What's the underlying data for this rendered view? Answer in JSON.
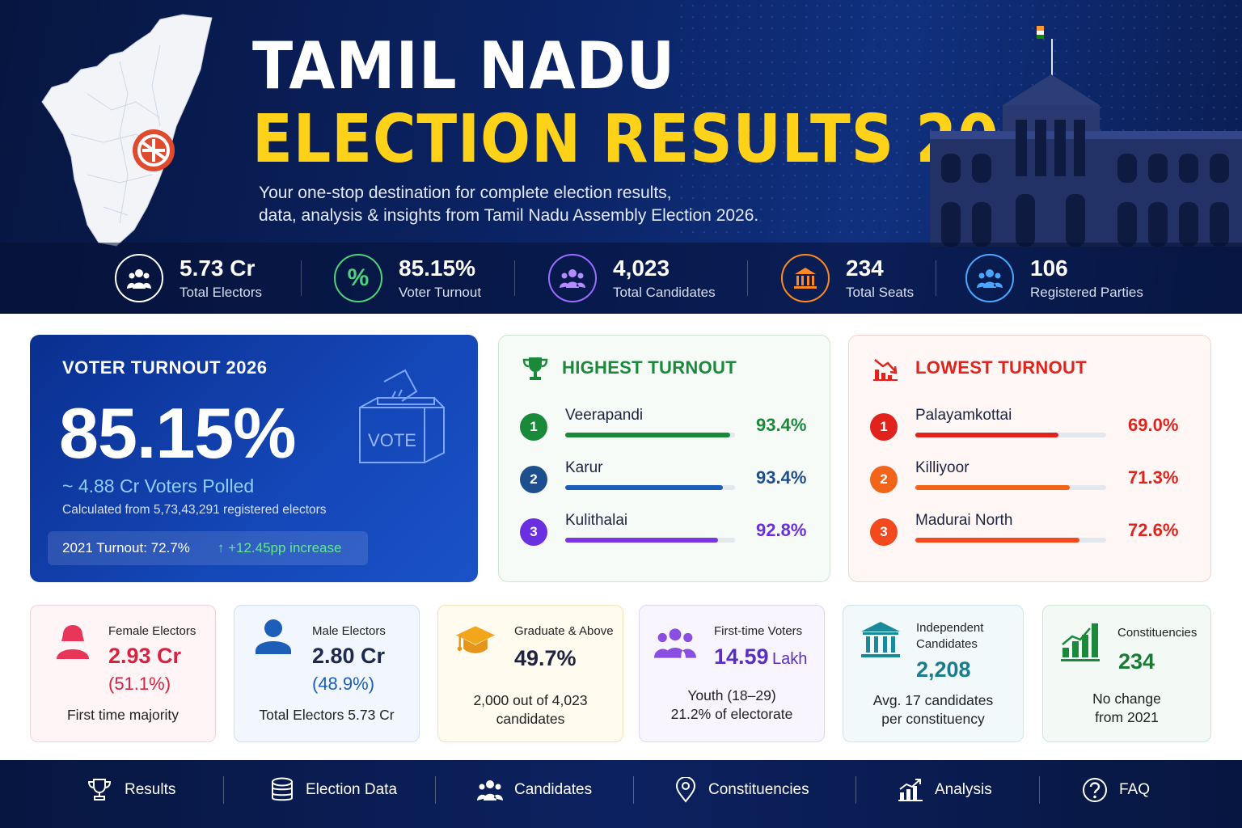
{
  "hero": {
    "title_line1": "TAMIL NADU",
    "title_line2": "ELECTION RESULTS 2026",
    "subtitle_line1": "Your one-stop destination for complete election results,",
    "subtitle_line2": "data, analysis & insights from Tamil Nadu Assembly Election 2026."
  },
  "stats": [
    {
      "value": "5.73 Cr",
      "label": "Total Electors",
      "icon": "people-icon",
      "color": "#ffffff"
    },
    {
      "value": "85.15%",
      "label": "Voter Turnout",
      "icon": "percent-icon",
      "color": "#4cd37a"
    },
    {
      "value": "4,023",
      "label": "Total Candidates",
      "icon": "candidates-icon",
      "color": "#9b6cff"
    },
    {
      "value": "234",
      "label": "Total Seats",
      "icon": "building-icon",
      "color": "#ff8a1f"
    },
    {
      "value": "106",
      "label": "Registered Parties",
      "icon": "group-icon",
      "color": "#4aa6ff"
    }
  ],
  "turnout": {
    "heading": "VOTER TURNOUT 2026",
    "big_value": "85.15%",
    "polled": "~ 4.88 Cr Voters Polled",
    "calc_note": "Calculated from 5,73,43,291 registered electors",
    "prev": "2021 Turnout: 72.7%",
    "increase": "+12.45pp increase",
    "box_label": "VOTE"
  },
  "highest": {
    "title": "HIGHEST TURNOUT",
    "color": "#1a8a3a",
    "rows": [
      {
        "rank": "1",
        "name": "Veerapandi",
        "pct": "93.4%",
        "fill": 0.97,
        "color": "#1a8a3a"
      },
      {
        "rank": "2",
        "name": "Karur",
        "pct": "93.4%",
        "fill": 0.93,
        "color": "#1d5fb8"
      },
      {
        "rank": "3",
        "name": "Kulithalai",
        "pct": "92.8%",
        "fill": 0.9,
        "color": "#7a35e0"
      }
    ]
  },
  "lowest": {
    "title": "LOWEST TURNOUT",
    "color": "#e0241d",
    "rows": [
      {
        "rank": "1",
        "name": "Palayamkottai",
        "pct": "69.0%",
        "fill": 0.75,
        "color": "#e0241d"
      },
      {
        "rank": "2",
        "name": "Killiyoor",
        "pct": "71.3%",
        "fill": 0.81,
        "color": "#f26419"
      },
      {
        "rank": "3",
        "name": "Madurai North",
        "pct": "72.6%",
        "fill": 0.86,
        "color": "#f24a1d"
      }
    ]
  },
  "cards": {
    "female": {
      "label": "Female Electors",
      "value": "2.93 Cr",
      "sub": "(51.1%)",
      "foot": "First time majority"
    },
    "male": {
      "label": "Male Electors",
      "value": "2.80 Cr",
      "sub": "(48.9%)",
      "foot": "Total Electors 5.73 Cr"
    },
    "graduate": {
      "label": "Graduate & Above",
      "value": "49.7%",
      "foot1": "2,000 out of 4,023",
      "foot2": "candidates"
    },
    "firsttime": {
      "label": "First-time Voters",
      "value": "14.59",
      "unit": "Lakh",
      "foot1": "Youth (18–29)",
      "foot2": "21.2% of electorate"
    },
    "independent": {
      "label1": "Independent",
      "label2": "Candidates",
      "value": "2,208",
      "foot1": "Avg. 17 candidates",
      "foot2": "per constituency"
    },
    "constituencies": {
      "label": "Constituencies",
      "value": "234",
      "foot1": "No change",
      "foot2": "from 2021"
    }
  },
  "nav": [
    {
      "label": "Results",
      "icon": "trophy-icon"
    },
    {
      "label": "Election Data",
      "icon": "database-icon"
    },
    {
      "label": "Candidates",
      "icon": "candidates-icon"
    },
    {
      "label": "Constituencies",
      "icon": "location-pin-icon"
    },
    {
      "label": "Analysis",
      "icon": "chart-icon"
    },
    {
      "label": "FAQ",
      "icon": "help-icon"
    }
  ]
}
